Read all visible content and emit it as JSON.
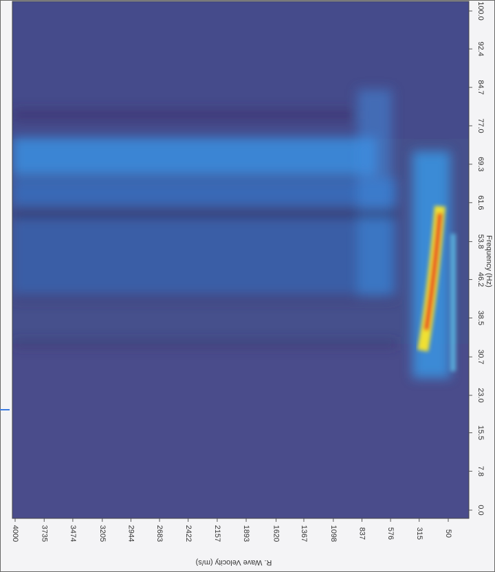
{
  "chart_data": {
    "type": "heatmap",
    "xlabel": "R. Wave Velocity (m/s)",
    "ylabel": "Frequency (Hz)",
    "xlim": [
      4000,
      50
    ],
    "xticks": [
      4000,
      3735,
      3474,
      3205,
      2944,
      2683,
      2422,
      2157,
      1893,
      1620,
      1367,
      1098,
      837,
      576,
      315,
      50
    ],
    "ylim": [
      0,
      100
    ],
    "yticks": [
      {
        "value": 0,
        "label": "0.0"
      },
      7.8,
      15.5,
      {
        "value": 23,
        "label": "23.0"
      },
      30.7,
      38.5,
      46.2,
      53.8,
      61.6,
      69.3,
      {
        "value": 77,
        "label": "77.0"
      },
      84.7,
      92.4,
      {
        "value": 100,
        "label": "100.0"
      }
    ]
  }
}
